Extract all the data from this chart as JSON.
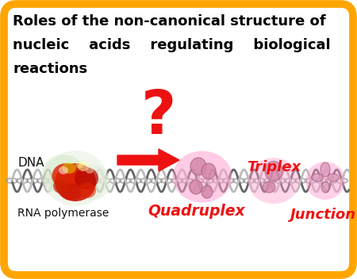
{
  "title_line1": "Roles of the non-canonical structure of",
  "title_line2": "nucleic    acids    regulating    biological",
  "title_line3": "reactions",
  "label_dna": "DNA",
  "label_rna": "RNA polymerase",
  "label_quadruplex": "Quadruplex",
  "label_triplex": "Triplex",
  "label_junction": "Junction",
  "question_mark": "?",
  "border_color": "#FFA500",
  "bg_color": "#FFFFFF",
  "title_color": "#000000",
  "red_color": "#EE1111",
  "label_color": "#111111",
  "fig_width": 4.5,
  "fig_height": 3.52,
  "dpi": 100
}
